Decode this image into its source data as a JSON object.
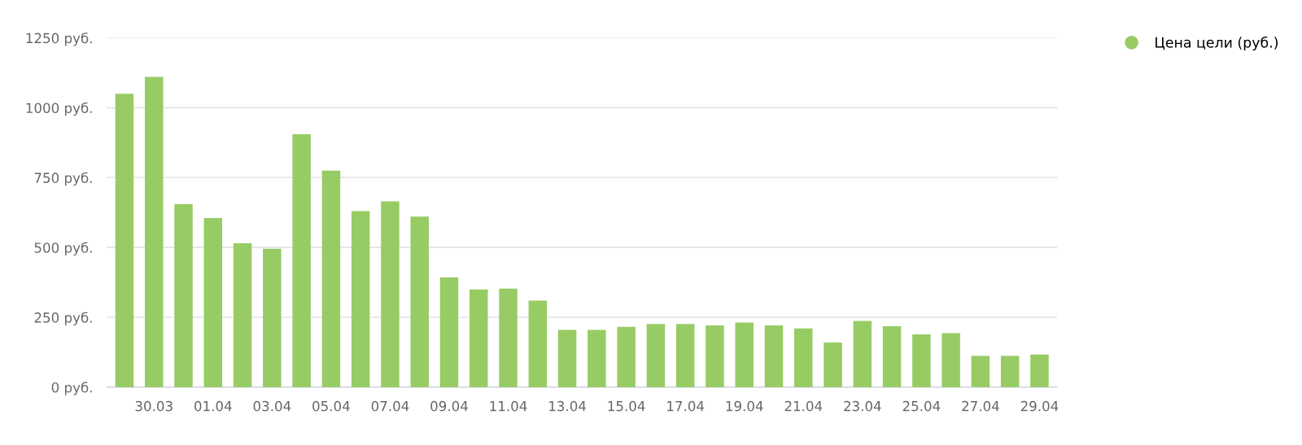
{
  "chart_data": {
    "type": "bar",
    "categories": [
      null,
      "30.03",
      null,
      "01.04",
      null,
      "03.04",
      null,
      "05.04",
      null,
      "07.04",
      null,
      "09.04",
      null,
      "11.04",
      null,
      "13.04",
      null,
      "15.04",
      null,
      "17.04",
      null,
      "19.04",
      null,
      "21.04",
      null,
      "23.04",
      null,
      "25.04",
      null,
      "27.04",
      null,
      "29.04"
    ],
    "series": [
      {
        "name": "Цена цели (руб.)",
        "color": "#97cc64",
        "values": [
          1050,
          1110,
          655,
          605,
          515,
          495,
          905,
          775,
          630,
          665,
          610,
          393,
          350,
          353,
          310,
          205,
          205,
          216,
          226,
          226,
          221,
          231,
          221,
          210,
          160,
          237,
          218,
          189,
          193,
          112,
          112,
          117
        ]
      }
    ],
    "ylim": [
      0,
      1250
    ],
    "yticks": [
      {
        "value": 0,
        "label": "0 руб."
      },
      {
        "value": 250,
        "label": "250 руб."
      },
      {
        "value": 500,
        "label": "500 руб."
      },
      {
        "value": 750,
        "label": "750 руб."
      },
      {
        "value": 1000,
        "label": "1000 руб."
      },
      {
        "value": 1250,
        "label": "1250 руб."
      }
    ],
    "grid": "y",
    "legend": "top right",
    "marker": "circle"
  }
}
